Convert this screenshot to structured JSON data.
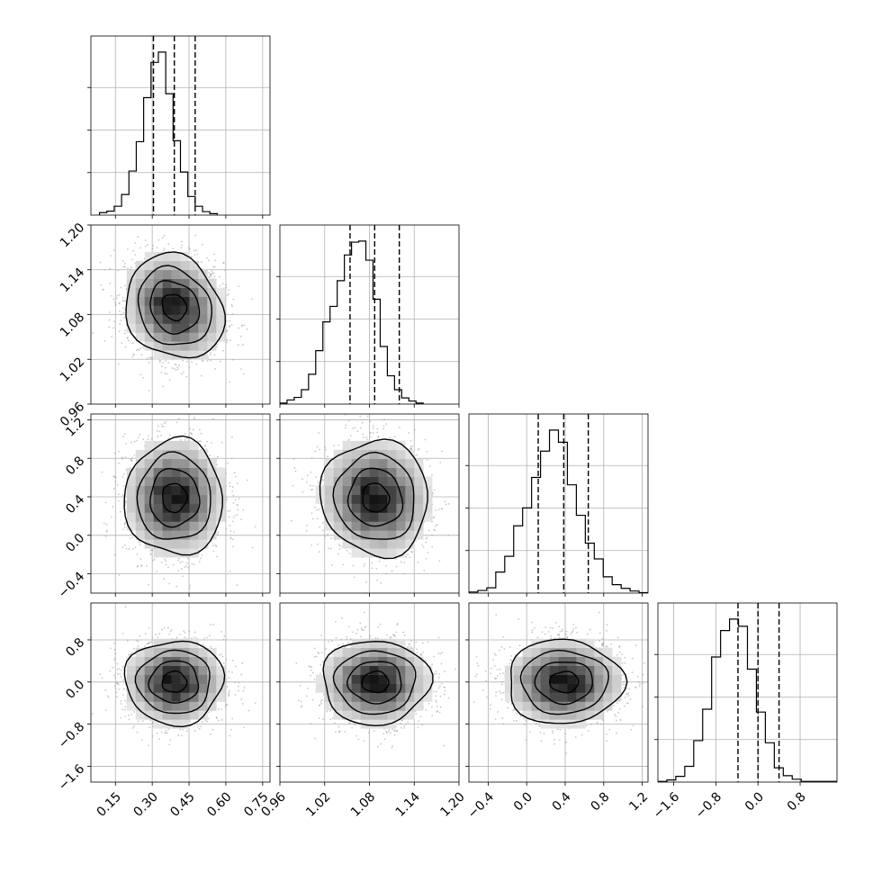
{
  "chart_data": {
    "type": "corner",
    "title": "",
    "grid": true,
    "quantiles": [
      0.16,
      0.5,
      0.84
    ],
    "parameters": [
      {
        "range": [
          0.05,
          0.78
        ],
        "ticks": [
          "0.15",
          "0.30",
          "0.45",
          "0.60",
          "0.75"
        ],
        "tick_values": [
          0.15,
          0.3,
          0.45,
          0.6,
          0.75
        ],
        "histogram": {
          "bin_start": 0.085,
          "bin_width": 0.03,
          "counts": [
            5,
            8,
            18,
            42,
            90,
            150,
            240,
            312,
            333,
            248,
            152,
            88,
            38,
            18,
            7,
            3
          ]
        },
        "quantile_values": [
          0.305,
          0.39,
          0.475
        ]
      },
      {
        "range": [
          0.96,
          1.2
        ],
        "ticks": [
          "0.96",
          "1.02",
          "1.08",
          "1.14",
          "1.20"
        ],
        "tick_values": [
          0.96,
          1.02,
          1.08,
          1.14,
          1.2
        ],
        "histogram": {
          "bin_start": 0.96,
          "bin_width": 0.0096,
          "counts": [
            2,
            8,
            13,
            28,
            58,
            104,
            160,
            190,
            240,
            290,
            315,
            317,
            280,
            204,
            112,
            55,
            28,
            12,
            6,
            2
          ]
        },
        "quantile_values": [
          1.054,
          1.087,
          1.12
        ]
      },
      {
        "range": [
          -0.6,
          1.26
        ],
        "ticks": [
          "-0.4",
          "0.0",
          "0.4",
          "0.8",
          "1.2"
        ],
        "tick_values": [
          -0.4,
          0.0,
          0.4,
          0.8,
          1.2
        ],
        "histogram": {
          "bin_start": -0.6,
          "bin_width": 0.093,
          "counts": [
            2,
            5,
            10,
            40,
            70,
            128,
            162,
            220,
            270,
            310,
            287,
            206,
            148,
            95,
            65,
            31,
            16,
            9,
            4,
            1
          ]
        },
        "quantile_values": [
          0.12,
          0.385,
          0.64
        ]
      },
      {
        "range": [
          -1.9,
          1.5
        ],
        "ticks": [
          "-1.6",
          "-0.8",
          "0.0",
          "0.8"
        ],
        "tick_values": [
          -1.6,
          -0.8,
          0.0,
          0.8
        ],
        "histogram": {
          "bin_start": -1.9,
          "bin_width": 0.17,
          "counts": [
            1,
            3,
            8,
            22,
            58,
            102,
            175,
            212,
            228,
            218,
            158,
            98,
            55,
            20,
            9,
            4,
            1,
            1,
            1,
            1
          ]
        },
        "quantile_values": [
          -0.38,
          0.0,
          0.4
        ]
      }
    ],
    "pair_plots": [
      {
        "x": 0,
        "y": 1,
        "center": [
          0.39,
          1.09
        ],
        "sigma": [
          0.1,
          0.035
        ],
        "rho": -0.15,
        "contour_levels_sigma": [
          0.5,
          1.0,
          1.5,
          2.0
        ]
      },
      {
        "x": 0,
        "y": 2,
        "center": [
          0.39,
          0.39
        ],
        "sigma": [
          0.1,
          0.3
        ],
        "rho": 0.0,
        "contour_levels_sigma": [
          0.5,
          1.0,
          1.5,
          2.0
        ]
      },
      {
        "x": 1,
        "y": 2,
        "center": [
          1.088,
          0.39
        ],
        "sigma": [
          0.036,
          0.3
        ],
        "rho": -0.05,
        "contour_levels_sigma": [
          0.5,
          1.0,
          1.5,
          2.0
        ]
      },
      {
        "x": 0,
        "y": 3,
        "center": [
          0.39,
          0.0
        ],
        "sigma": [
          0.1,
          0.4
        ],
        "rho": 0.0,
        "contour_levels_sigma": [
          0.5,
          1.0,
          1.5,
          2.0
        ]
      },
      {
        "x": 1,
        "y": 3,
        "center": [
          1.088,
          0.0
        ],
        "sigma": [
          0.036,
          0.4
        ],
        "rho": 0.0,
        "contour_levels_sigma": [
          0.5,
          1.0,
          1.5,
          2.0
        ]
      },
      {
        "x": 2,
        "y": 3,
        "center": [
          0.39,
          0.0
        ],
        "sigma": [
          0.3,
          0.4
        ],
        "rho": 0.0,
        "contour_levels_sigma": [
          0.5,
          1.0,
          1.5,
          2.0
        ]
      }
    ]
  }
}
